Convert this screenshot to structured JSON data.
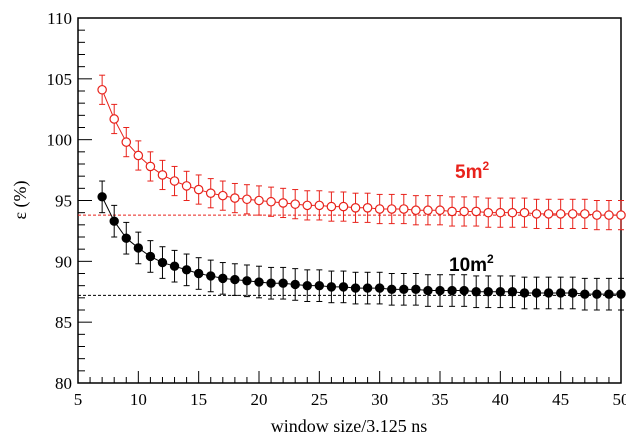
{
  "chart_data": {
    "type": "scatter",
    "title": "",
    "xlabel": "window size/3.125 ns",
    "ylabel": "ε (%)",
    "xlim": [
      5,
      50
    ],
    "ylim": [
      80,
      110
    ],
    "x_ticks": [
      5,
      10,
      15,
      20,
      25,
      30,
      35,
      40,
      45,
      50
    ],
    "y_ticks": [
      80,
      85,
      90,
      95,
      100,
      105,
      110
    ],
    "x_tick_labels": [
      "5",
      "10",
      "15",
      "20",
      "25",
      "30",
      "35",
      "40",
      "45",
      "50"
    ],
    "y_tick_labels": [
      "80",
      "85",
      "90",
      "95",
      "100",
      "105",
      "110"
    ],
    "grid": false,
    "x": [
      7,
      8,
      9,
      10,
      11,
      12,
      13,
      14,
      15,
      16,
      17,
      18,
      19,
      20,
      21,
      22,
      23,
      24,
      25,
      26,
      27,
      28,
      29,
      30,
      31,
      32,
      33,
      34,
      35,
      36,
      37,
      38,
      39,
      40,
      41,
      42,
      43,
      44,
      45,
      46,
      47,
      48,
      49,
      50
    ],
    "series": [
      {
        "name": "5m",
        "name_superscript": "2",
        "color": "#e8221b",
        "marker": "open-circle",
        "connected": true,
        "values": [
          104.1,
          101.7,
          99.8,
          98.7,
          97.8,
          97.1,
          96.6,
          96.2,
          95.9,
          95.6,
          95.4,
          95.2,
          95.1,
          95.0,
          94.9,
          94.8,
          94.7,
          94.6,
          94.6,
          94.5,
          94.5,
          94.4,
          94.4,
          94.3,
          94.3,
          94.3,
          94.2,
          94.2,
          94.2,
          94.1,
          94.1,
          94.1,
          94.0,
          94.0,
          94.0,
          94.0,
          93.9,
          93.9,
          93.9,
          93.9,
          93.9,
          93.8,
          93.8,
          93.8
        ],
        "error": 1.2,
        "reference_line": 93.8
      },
      {
        "name": "10m",
        "name_superscript": "2",
        "color": "#000000",
        "marker": "filled-circle",
        "connected": true,
        "values": [
          95.3,
          93.3,
          91.9,
          91.1,
          90.4,
          89.9,
          89.6,
          89.3,
          89.0,
          88.8,
          88.6,
          88.5,
          88.4,
          88.3,
          88.2,
          88.2,
          88.1,
          88.0,
          88.0,
          87.9,
          87.9,
          87.8,
          87.8,
          87.8,
          87.7,
          87.7,
          87.7,
          87.6,
          87.6,
          87.6,
          87.6,
          87.5,
          87.5,
          87.5,
          87.5,
          87.4,
          87.4,
          87.4,
          87.4,
          87.4,
          87.3,
          87.3,
          87.3,
          87.3
        ],
        "error": 1.3,
        "reference_line": 87.2
      }
    ]
  }
}
